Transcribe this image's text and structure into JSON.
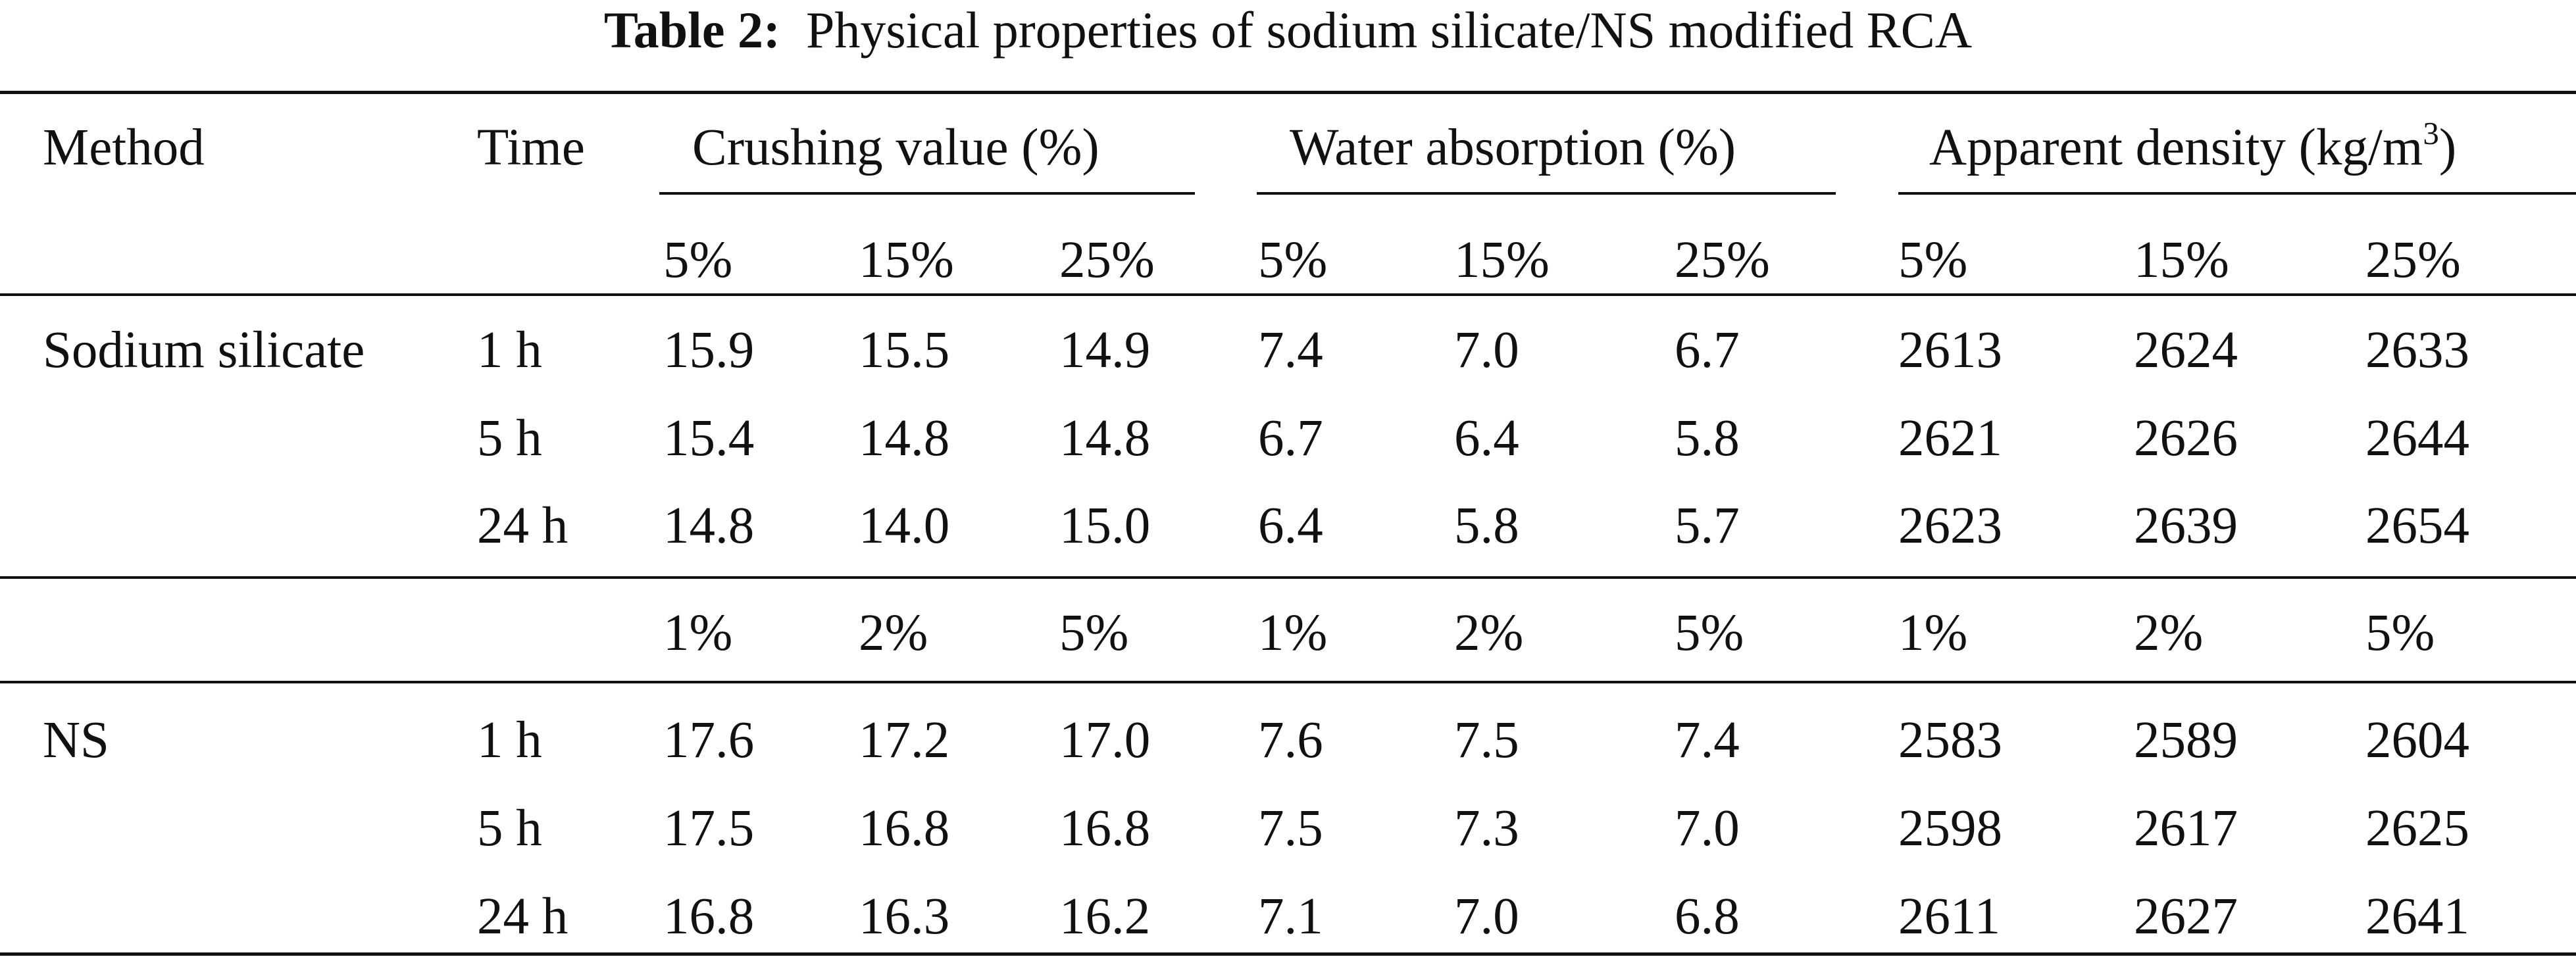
{
  "caption": {
    "label": "Table 2:",
    "text": "Physical properties of sodium silicate/NS modified RCA"
  },
  "header": {
    "method": "Method",
    "time": "Time",
    "groups": {
      "crushing": "Crushing value (%)",
      "water": "Water absorption (%)",
      "density_base": "Apparent density (kg/m",
      "density_sup": "3",
      "density_close": ")"
    }
  },
  "sections": [
    {
      "method": "Sodium silicate",
      "dosages": [
        "5%",
        "15%",
        "25%",
        "5%",
        "15%",
        "25%",
        "5%",
        "15%",
        "25%"
      ],
      "rows": [
        {
          "time": "1 h",
          "values": [
            "15.9",
            "15.5",
            "14.9",
            "7.4",
            "7.0",
            "6.7",
            "2613",
            "2624",
            "2633"
          ]
        },
        {
          "time": "5 h",
          "values": [
            "15.4",
            "14.8",
            "14.8",
            "6.7",
            "6.4",
            "5.8",
            "2621",
            "2626",
            "2644"
          ]
        },
        {
          "time": "24 h",
          "values": [
            "14.8",
            "14.0",
            "15.0",
            "6.4",
            "5.8",
            "5.7",
            "2623",
            "2639",
            "2654"
          ]
        }
      ]
    },
    {
      "method": "NS",
      "dosages": [
        "1%",
        "2%",
        "5%",
        "1%",
        "2%",
        "5%",
        "1%",
        "2%",
        "5%"
      ],
      "rows": [
        {
          "time": "1 h",
          "values": [
            "17.6",
            "17.2",
            "17.0",
            "7.6",
            "7.5",
            "7.4",
            "2583",
            "2589",
            "2604"
          ]
        },
        {
          "time": "5 h",
          "values": [
            "17.5",
            "16.8",
            "16.8",
            "7.5",
            "7.3",
            "7.0",
            "2598",
            "2617",
            "2625"
          ]
        },
        {
          "time": "24 h",
          "values": [
            "16.8",
            "16.3",
            "16.2",
            "7.1",
            "7.0",
            "6.8",
            "2611",
            "2627",
            "2641"
          ]
        }
      ]
    }
  ]
}
